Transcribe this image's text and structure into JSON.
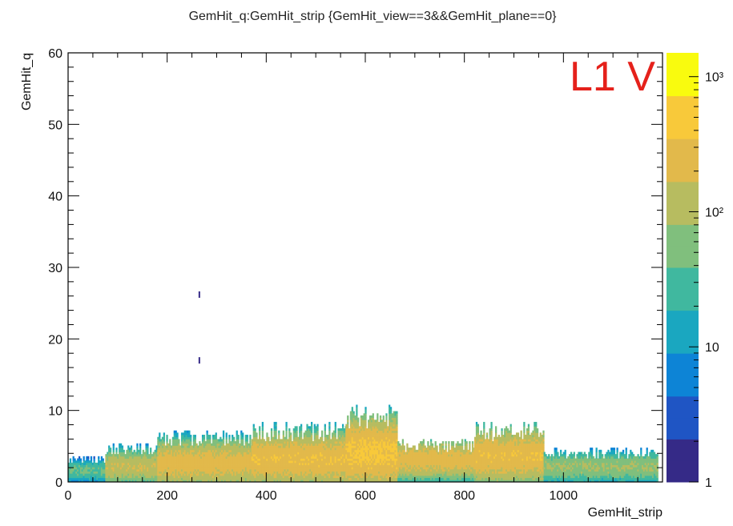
{
  "chart_data": {
    "type": "heatmap",
    "title": "GemHit_q:GemHit_strip {GemHit_view==3&&GemHit_plane==0}",
    "xlabel": "GemHit_strip",
    "ylabel": "GemHit_q",
    "annotation": "L1 V",
    "xlim": [
      0,
      1200
    ],
    "ylim": [
      0,
      60
    ],
    "x_ticks": [
      0,
      200,
      400,
      600,
      800,
      1000
    ],
    "y_ticks": [
      0,
      10,
      20,
      30,
      40,
      50,
      60
    ],
    "colorbar": {
      "scale": "log",
      "range": [
        1,
        1500
      ],
      "ticks": [
        {
          "value": 1,
          "label": "1"
        },
        {
          "value": 10,
          "label": "10"
        },
        {
          "value": 100,
          "label": "10²"
        },
        {
          "value": 1000,
          "label": "10³"
        }
      ],
      "palette": [
        "#352a87",
        "#1f55c4",
        "#0d84d6",
        "#1aa7c0",
        "#40b89f",
        "#80bf7d",
        "#b7bc60",
        "#e2b94b",
        "#f8c93a",
        "#f9fb0e"
      ]
    },
    "regions": [
      {
        "x": [
          0,
          75
        ],
        "q_max": 3,
        "peak": 1.5,
        "counts": 40
      },
      {
        "x": [
          75,
          180
        ],
        "q_max": 4.5,
        "peak": 2.0,
        "counts": 150
      },
      {
        "x": [
          180,
          370
        ],
        "q_max": 6,
        "peak": 2.5,
        "counts": 250
      },
      {
        "x": [
          370,
          560
        ],
        "q_max": 7,
        "peak": 3.0,
        "counts": 300
      },
      {
        "x": [
          560,
          665
        ],
        "q_max": 9,
        "peak": 4.0,
        "counts": 400
      },
      {
        "x": [
          665,
          820
        ],
        "q_max": 5,
        "peak": 3.0,
        "counts": 250
      },
      {
        "x": [
          820,
          960
        ],
        "q_max": 7,
        "peak": 3.5,
        "counts": 300
      },
      {
        "x": [
          960,
          1190
        ],
        "q_max": 4,
        "peak": 2.0,
        "counts": 80
      }
    ],
    "outliers": [
      {
        "x": 265,
        "q": 26.2
      },
      {
        "x": 265,
        "q": 17.0
      }
    ]
  }
}
